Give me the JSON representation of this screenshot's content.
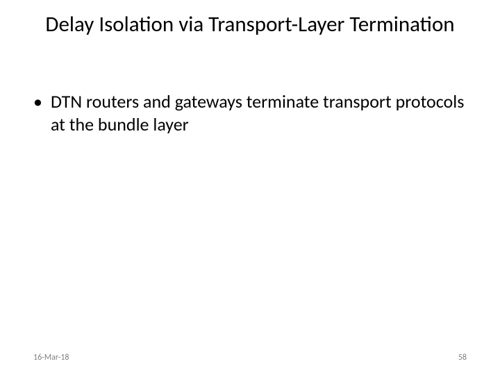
{
  "slide": {
    "title": "Delay Isolation via Transport-Layer Termination",
    "bullets": [
      {
        "text": "DTN routers and gateways terminate transport protocols at the bundle layer"
      }
    ],
    "footer": {
      "date": "16-Mar-18",
      "page": "58"
    },
    "style": {
      "background_color": "#ffffff",
      "text_color": "#000000",
      "footer_color": "#7f7f7f",
      "title_fontsize": 31,
      "body_fontsize": 26,
      "footer_fontsize": 12,
      "font_family": "Calibri"
    }
  }
}
